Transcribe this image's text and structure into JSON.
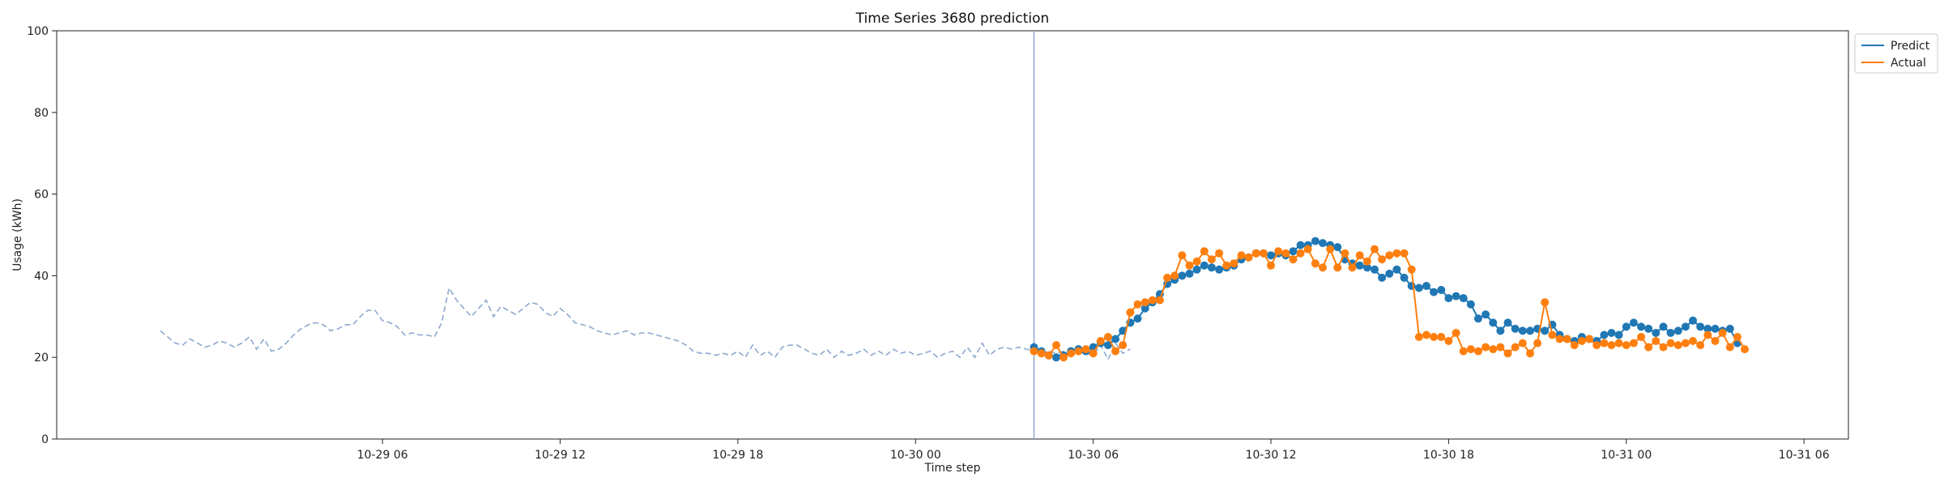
{
  "chart_data": {
    "type": "line",
    "title": "Time Series 3680 prediction",
    "xlabel": "Time step",
    "ylabel": "Usage (kWh)",
    "ylim": [
      0,
      100
    ],
    "yticks": [
      "0",
      "20",
      "40",
      "60",
      "80",
      "100"
    ],
    "xlim_hours": [
      -5,
      55.5
    ],
    "xticks": [
      {
        "hours": 6,
        "label": "10-29 06"
      },
      {
        "hours": 12,
        "label": "10-29 12"
      },
      {
        "hours": 18,
        "label": "10-29 18"
      },
      {
        "hours": 24,
        "label": "10-30 00"
      },
      {
        "hours": 30,
        "label": "10-30 06"
      },
      {
        "hours": 36,
        "label": "10-30 12"
      },
      {
        "hours": 42,
        "label": "10-30 18"
      },
      {
        "hours": 48,
        "label": "10-31 00"
      },
      {
        "hours": 54,
        "label": "10-31 06"
      }
    ],
    "step_hours": 0.25,
    "split_marker_hours": 28,
    "grid": false,
    "legend_position": "outside-top-right",
    "series": [
      {
        "name": "Predict",
        "color": "#1f77b4",
        "start_hours": 28,
        "values": [
          22.5,
          21.5,
          20.5,
          20.0,
          20.5,
          21.5,
          22.0,
          21.5,
          22.5,
          23.5,
          23.0,
          24.5,
          26.5,
          28.5,
          29.5,
          32.0,
          33.5,
          35.5,
          38.0,
          39.0,
          40.0,
          40.5,
          41.5,
          42.5,
          42.0,
          41.5,
          42.0,
          42.5,
          44.0,
          44.5,
          45.5,
          45.5,
          45.0,
          45.5,
          45.0,
          46.0,
          47.5,
          47.5,
          48.5,
          48.0,
          47.5,
          47.0,
          44.0,
          43.0,
          42.5,
          42.0,
          41.5,
          39.5,
          40.5,
          41.5,
          39.5,
          37.5,
          37.0,
          37.5,
          36.0,
          36.5,
          34.5,
          35.0,
          34.5,
          33.0,
          29.5,
          30.5,
          28.5,
          26.5,
          28.5,
          27.0,
          26.5,
          26.5,
          27.0,
          26.5,
          28.0,
          25.5,
          24.5,
          24.0,
          25.0,
          24.5,
          24.0,
          25.5,
          26.0,
          25.5,
          27.5,
          28.5,
          27.5,
          27.0,
          26.0,
          27.5,
          26.0,
          26.5,
          27.5,
          29.0,
          27.5,
          27.0,
          27.0,
          26.5,
          27.0,
          23.5
        ]
      },
      {
        "name": "Actual",
        "color": "#ff7f0e",
        "start_hours": 28,
        "values": [
          21.5,
          21.0,
          20.5,
          23.0,
          20.0,
          21.0,
          21.5,
          22.0,
          21.0,
          24.0,
          25.0,
          21.5,
          23.0,
          31.0,
          33.0,
          33.5,
          34.0,
          34.0,
          39.5,
          40.0,
          45.0,
          42.5,
          43.5,
          46.0,
          44.0,
          45.5,
          42.5,
          43.0,
          45.0,
          44.5,
          45.5,
          45.5,
          42.5,
          46.0,
          45.5,
          44.0,
          45.5,
          46.5,
          43.0,
          42.0,
          46.5,
          42.0,
          45.5,
          42.0,
          45.0,
          43.5,
          46.5,
          44.0,
          45.0,
          45.5,
          45.5,
          41.5,
          25.0,
          25.5,
          25.0,
          25.0,
          24.0,
          26.0,
          21.5,
          22.0,
          21.5,
          22.5,
          22.0,
          22.5,
          21.0,
          22.5,
          23.5,
          21.0,
          23.5,
          33.5,
          25.5,
          24.5,
          24.5,
          23.0,
          24.0,
          24.5,
          23.0,
          23.5,
          23.0,
          23.5,
          23.0,
          23.5,
          25.0,
          22.5,
          24.0,
          22.5,
          23.5,
          23.0,
          23.5,
          24.0,
          23.0,
          25.5,
          24.0,
          26.0,
          22.5,
          25.0,
          22.0
        ]
      },
      {
        "name": "",
        "color": "#8fa8cf",
        "dashed": true,
        "start_hours": -1.5,
        "values": [
          26.5,
          25.0,
          23.5,
          23.0,
          24.5,
          23.5,
          22.5,
          23.0,
          24.0,
          23.5,
          22.5,
          23.5,
          25.0,
          22.0,
          24.5,
          21.5,
          22.0,
          23.5,
          25.5,
          27.0,
          28.0,
          28.5,
          28.0,
          26.5,
          27.0,
          28.0,
          28.0,
          30.0,
          31.5,
          31.5,
          29.0,
          28.5,
          27.5,
          25.5,
          26.0,
          25.5,
          25.5,
          25.0,
          28.5,
          37.0,
          34.0,
          32.0,
          30.0,
          32.0,
          34.0,
          30.0,
          32.5,
          31.5,
          30.5,
          32.0,
          33.5,
          33.0,
          31.0,
          30.0,
          32.0,
          30.5,
          28.5,
          28.0,
          27.5,
          26.5,
          26.0,
          25.5,
          26.0,
          26.5,
          25.5,
          26.0,
          26.0,
          25.5,
          25.0,
          24.5,
          24.0,
          23.0,
          21.5,
          21.0,
          21.0,
          20.5,
          21.0,
          20.5,
          21.5,
          20.0,
          23.0,
          20.5,
          21.5,
          20.0,
          22.5,
          23.0,
          23.0,
          22.0,
          21.0,
          20.5,
          22.0,
          20.0,
          21.5,
          20.5,
          21.0,
          22.0,
          20.5,
          21.5,
          20.5,
          22.0,
          21.0,
          21.5,
          20.5,
          21.0,
          21.5,
          20.0,
          21.0,
          21.5,
          20.0,
          22.5,
          20.0,
          23.5,
          20.5,
          22.0,
          22.5,
          22.0,
          22.5,
          22.0,
          21.5,
          21.0,
          21.5,
          21.0,
          21.5,
          20.5,
          22.5,
          21.0,
          20.5,
          23.0,
          19.5,
          23.5,
          21.0,
          22.0
        ]
      }
    ],
    "legend": [
      {
        "label": "Predict",
        "color": "#1f77b4"
      },
      {
        "label": "Actual",
        "color": "#ff7f0e"
      }
    ]
  }
}
